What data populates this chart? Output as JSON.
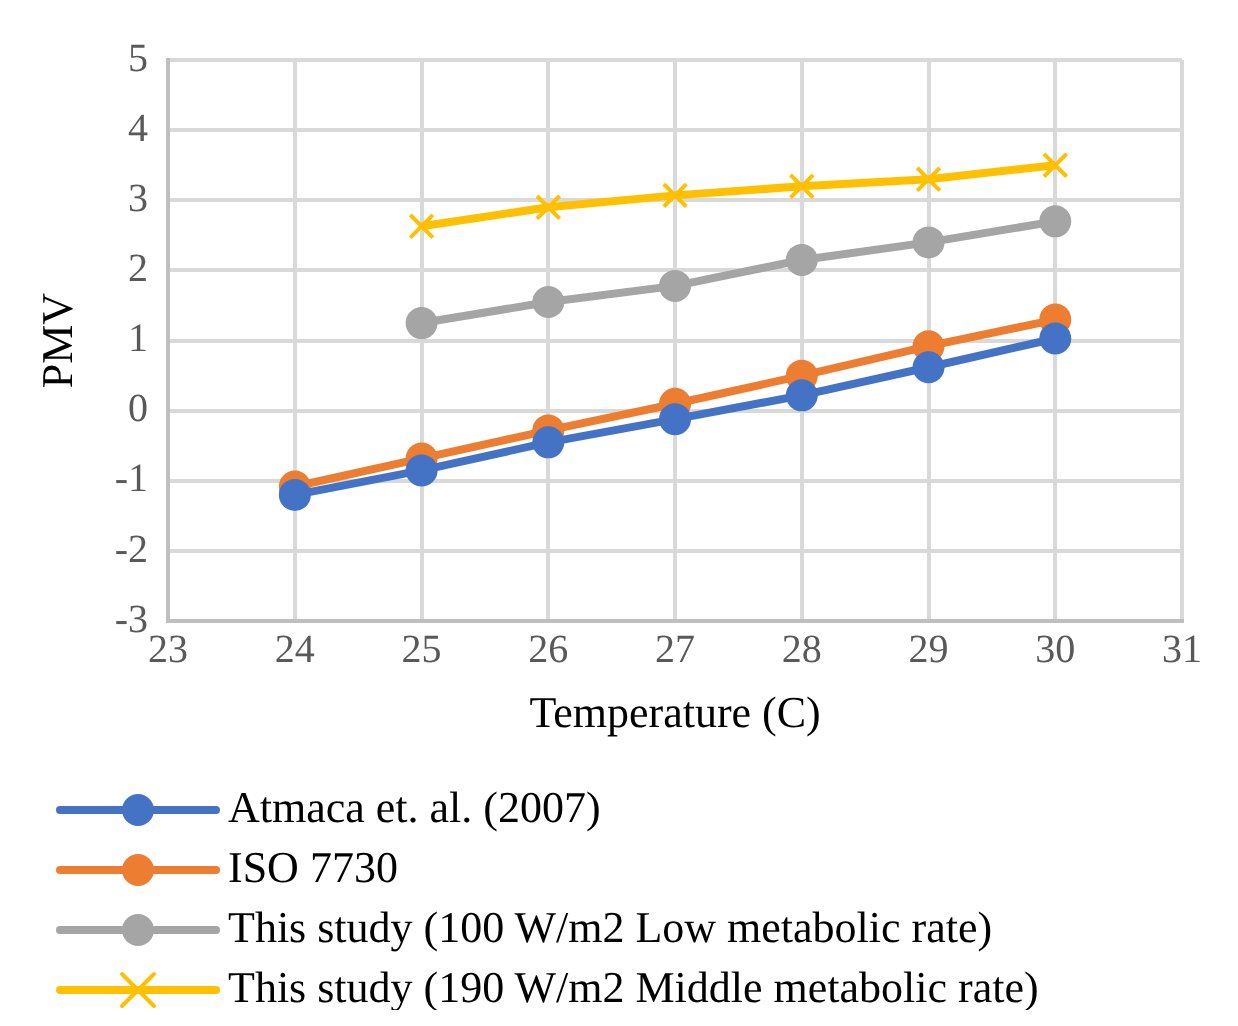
{
  "chart_data": {
    "type": "line",
    "xlabel": "Temperature (C)",
    "ylabel": "PMV",
    "xlim": [
      23,
      31
    ],
    "xticks": [
      23,
      24,
      25,
      26,
      27,
      28,
      29,
      30,
      31
    ],
    "ylim": [
      -3,
      5
    ],
    "yticks": [
      -3,
      -2,
      -1,
      0,
      1,
      2,
      3,
      4,
      5
    ],
    "grid": true,
    "legend": "bottom",
    "series": [
      {
        "name": "Atmaca et. al. (2007)",
        "color": "#4472c4",
        "marker": "circle",
        "x": [
          24,
          25,
          26,
          27,
          28,
          29,
          30
        ],
        "values": [
          -1.2,
          -0.85,
          -0.45,
          -0.12,
          0.22,
          0.62,
          1.03
        ]
      },
      {
        "name": "ISO 7730",
        "color": "#ed7d31",
        "marker": "circle",
        "x": [
          24,
          25,
          26,
          27,
          28,
          29,
          30
        ],
        "values": [
          -1.08,
          -0.68,
          -0.28,
          0.1,
          0.5,
          0.92,
          1.3
        ]
      },
      {
        "name": "This study (100 W/m2 Low metabolic rate)",
        "color": "#a5a5a5",
        "marker": "circle",
        "x": [
          25,
          26,
          27,
          28,
          29,
          30
        ],
        "values": [
          1.25,
          1.55,
          1.78,
          2.15,
          2.4,
          2.7
        ]
      },
      {
        "name": "This study (190 W/m2 Middle metabolic rate)",
        "color": "#ffc000",
        "marker": "cross",
        "x": [
          25,
          26,
          27,
          28,
          29,
          30
        ],
        "values": [
          2.63,
          2.9,
          3.07,
          3.2,
          3.3,
          3.5
        ]
      }
    ]
  }
}
